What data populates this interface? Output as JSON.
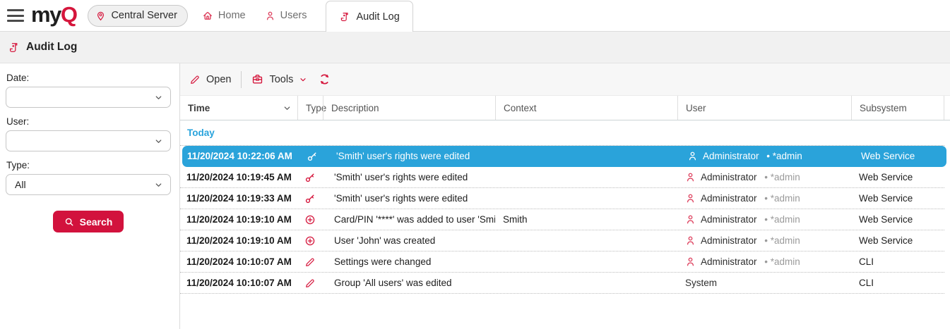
{
  "brand": {
    "logo_my": "my",
    "logo_q": "Q"
  },
  "nav": {
    "server_label": "Central Server",
    "items": [
      {
        "label": "Home"
      },
      {
        "label": "Users"
      },
      {
        "label": "Audit Log",
        "active": true
      }
    ]
  },
  "page": {
    "title": "Audit Log"
  },
  "filters": {
    "date_label": "Date:",
    "date_value": "",
    "user_label": "User:",
    "user_value": "",
    "type_label": "Type:",
    "type_value": "All",
    "search_label": "Search"
  },
  "toolbar": {
    "open_label": "Open",
    "tools_label": "Tools"
  },
  "table": {
    "columns": [
      "Time",
      "Type",
      "Description",
      "Context",
      "User",
      "Subsystem"
    ],
    "group_label": "Today",
    "rows": [
      {
        "time": "11/20/2024 10:22:06 AM",
        "type_icon": "key",
        "description": "'Smith' user's rights were edited",
        "context": "",
        "user": "Administrator",
        "user_detail": "*admin",
        "user_icon": true,
        "subsystem": "Web Service",
        "selected": true
      },
      {
        "time": "11/20/2024 10:19:45 AM",
        "type_icon": "key",
        "description": "'Smith' user's rights were edited",
        "context": "",
        "user": "Administrator",
        "user_detail": "*admin",
        "user_icon": true,
        "subsystem": "Web Service",
        "selected": false
      },
      {
        "time": "11/20/2024 10:19:33 AM",
        "type_icon": "key",
        "description": "'Smith' user's rights were edited",
        "context": "",
        "user": "Administrator",
        "user_detail": "*admin",
        "user_icon": true,
        "subsystem": "Web Service",
        "selected": false
      },
      {
        "time": "11/20/2024 10:19:10 AM",
        "type_icon": "plus-circle",
        "description": "Card/PIN '****' was added to user 'Smith'",
        "context": "Smith",
        "user": "Administrator",
        "user_detail": "*admin",
        "user_icon": true,
        "subsystem": "Web Service",
        "selected": false
      },
      {
        "time": "11/20/2024 10:19:10 AM",
        "type_icon": "plus-circle",
        "description": "User 'John' was created",
        "context": "",
        "user": "Administrator",
        "user_detail": "*admin",
        "user_icon": true,
        "subsystem": "Web Service",
        "selected": false
      },
      {
        "time": "11/20/2024 10:10:07 AM",
        "type_icon": "pencil",
        "description": "Settings were changed",
        "context": "",
        "user": "Administrator",
        "user_detail": "*admin",
        "user_icon": true,
        "subsystem": "CLI",
        "selected": false
      },
      {
        "time": "11/20/2024 10:10:07 AM",
        "type_icon": "pencil",
        "description": "Group 'All users' was edited",
        "context": "",
        "user": "System",
        "user_detail": "",
        "user_icon": false,
        "subsystem": "CLI",
        "selected": false
      }
    ]
  },
  "colors": {
    "brand_red": "#d5163c",
    "selected_row_blue": "#2aa3da",
    "group_label_blue": "#29a3dc"
  }
}
